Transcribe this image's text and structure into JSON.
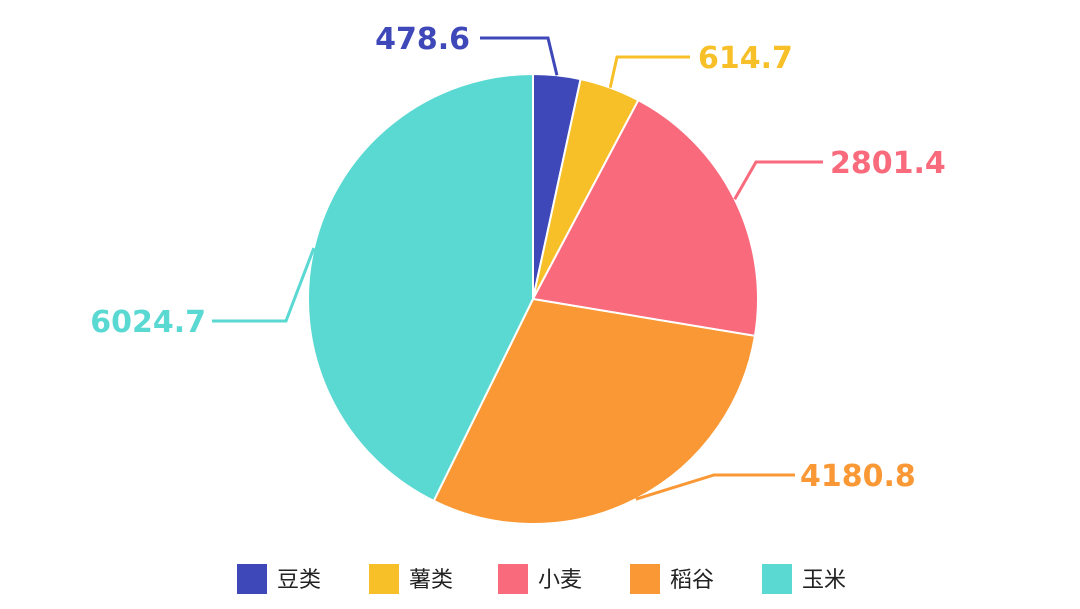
{
  "chart_data": {
    "type": "pie",
    "title": "",
    "categories": [
      "豆类",
      "薯类",
      "小麦",
      "稻谷",
      "玉米"
    ],
    "values": [
      478.6,
      614.7,
      2801.4,
      4180.8,
      6024.7
    ],
    "value_labels": [
      "478.6",
      "614.7",
      "2801.4",
      "4180.8",
      "6024.7"
    ],
    "colors": [
      "#3f48b8",
      "#f7c028",
      "#f96a7c",
      "#f99834",
      "#5ad8d2"
    ],
    "start_angle": "top",
    "direction": "clockwise",
    "legend_placement": "bottom",
    "data_labels": "outside"
  }
}
